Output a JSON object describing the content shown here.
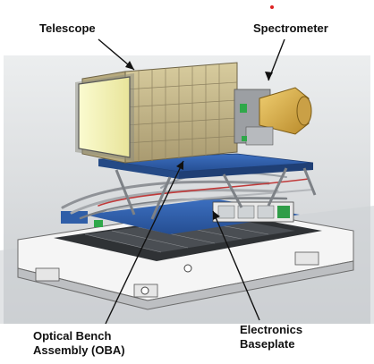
{
  "labels": {
    "telescope": "Telescope",
    "spectrometer": "Spectrometer",
    "oba_line1": "Optical Bench",
    "oba_line2": "Assembly (OBA)",
    "electronics_line1": "Electronics",
    "electronics_line2": "Baseplate"
  },
  "colors": {
    "telescope_aperture": "#f1f0a8",
    "telescope_body": "#c9b98d",
    "spectrometer_gold": "#d7ab45",
    "bench_blue": "#2e5da8",
    "baseplate_gray": "#6a6d72",
    "floor_gray": "#d3d6d8"
  }
}
